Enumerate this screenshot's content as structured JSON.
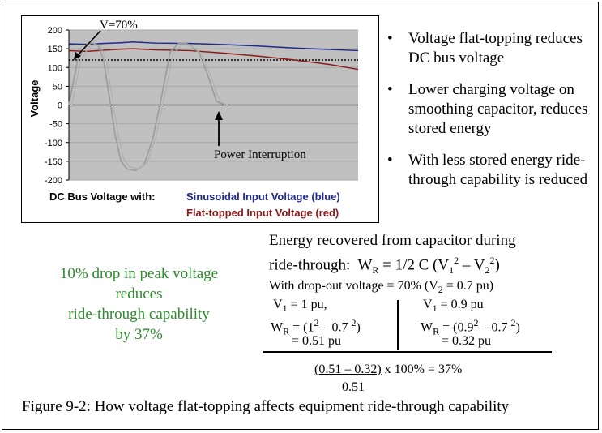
{
  "chart_data": {
    "type": "line",
    "ylabel": "Voltage",
    "ylim": [
      -200,
      200
    ],
    "yticks": [
      "200",
      "150",
      "100",
      "50",
      "0",
      "-50",
      "-100",
      "-150",
      "-200"
    ],
    "grid": true,
    "series": [
      {
        "name": "Sinusoidal Input Voltage (blue)",
        "color": "#1f2a8c",
        "x": [
          0,
          6,
          18,
          22,
          30,
          42,
          54,
          66,
          78,
          90,
          100
        ],
        "y": [
          163,
          162,
          166,
          168,
          165,
          164,
          161,
          157,
          152,
          148,
          145
        ]
      },
      {
        "name": "Flat-topped Input Voltage (red)",
        "color": "#8b1a1a",
        "x": [
          0,
          6,
          18,
          22,
          30,
          42,
          54,
          66,
          78,
          90,
          100
        ],
        "y": [
          145,
          143,
          149,
          150,
          147,
          145,
          138,
          130,
          120,
          108,
          95
        ]
      },
      {
        "name": "",
        "color": "#9a9a9a",
        "x": [
          0,
          3,
          6,
          8,
          10,
          12,
          14,
          16,
          18,
          20,
          23,
          26,
          29,
          32,
          35,
          38,
          40,
          42,
          45,
          48,
          51,
          54
        ],
        "y": [
          0,
          120,
          160,
          165,
          160,
          120,
          20,
          -80,
          -150,
          -170,
          -175,
          -160,
          -90,
          20,
          140,
          165,
          165,
          160,
          140,
          80,
          10,
          0
        ]
      }
    ],
    "dashed_reference": {
      "y": 120
    },
    "annotations": [
      {
        "text": "V=70%"
      },
      {
        "text": "Power Interruption"
      }
    ],
    "legend_prefix": "DC Bus Voltage with:",
    "legend_entries": [
      {
        "text": "Sinusoidal Input Voltage (blue)",
        "color": "#1f2a8c"
      },
      {
        "text": "Flat-topped Input Voltage (red)",
        "color": "#8b1a1a"
      }
    ]
  },
  "bullets": [
    "Voltage flat-topping reduces DC bus voltage",
    "Lower charging voltage on smoothing capacitor, reduces stored energy",
    "With less stored energy ride-through capability is reduced"
  ],
  "bullet_glyph": "•",
  "green_note": {
    "lines": [
      "10% drop in peak voltage",
      "reduces",
      "ride-through capability",
      "by 37%"
    ],
    "color": "#2e8b2e"
  },
  "energy": {
    "title_line1": "Energy recovered from capacitor during",
    "title_line2_prefix": "ride-through:",
    "formula_W": "W",
    "formula_sub": "R",
    "formula_eq": "= 1/2 C (V",
    "formula_v1sub": "1",
    "formula_sq": "2",
    "formula_mid": " – V",
    "formula_v2sub": "2",
    "formula_end": ")",
    "dropout": "With drop-out voltage = 70% (V",
    "dropout_sub": "2",
    "dropout_end": " = 0.7 pu)",
    "left": {
      "v_line": "V",
      "v_sub": "1",
      "v_rest": " = 1 pu,",
      "w_pre": "W",
      "w_sub": "R",
      "w_mid": " = (1",
      "w_sq1": "2",
      "w_dash": " – 0.7 ",
      "w_sq2": "2",
      "w_end": ")",
      "result": "= 0.51 pu"
    },
    "right": {
      "v_line": "V",
      "v_sub": "1",
      "v_rest": " = 0.9 pu",
      "w_pre": "W",
      "w_sub": "R",
      "w_mid": " = (0.9",
      "w_sq1": "2",
      "w_dash": " – 0.7 ",
      "w_sq2": "2",
      "w_end": ")",
      "result": "= 0.32 pu"
    },
    "fraction_num": "(0.51 – 0.32)",
    "fraction_tail": " x 100% = 37%",
    "fraction_den": "0.51"
  },
  "caption": "Figure 9-2:  How voltage flat-topping affects equipment ride-through capability"
}
